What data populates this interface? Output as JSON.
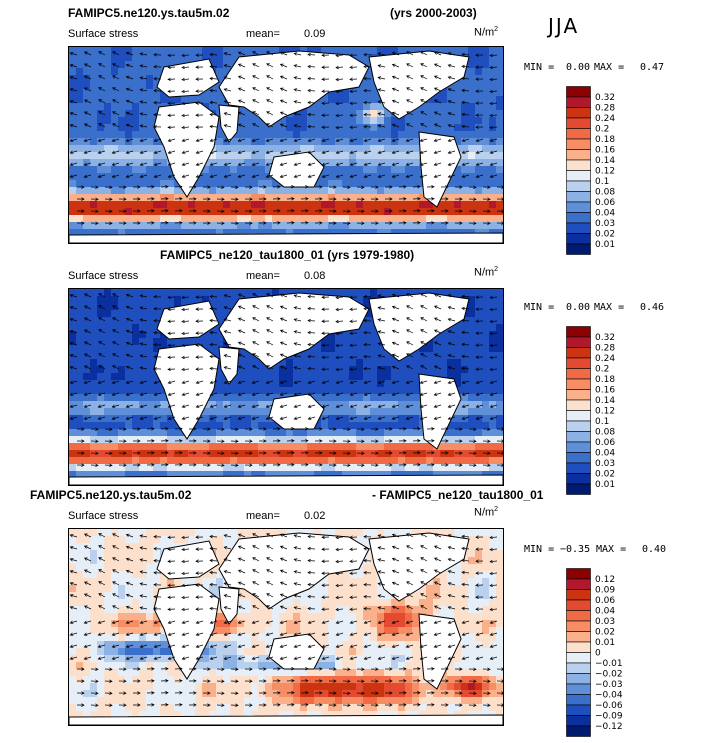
{
  "season": "JJA",
  "units_text": "N/m",
  "units_sup": "2",
  "panels": [
    {
      "title_left": "FAMIPC5.ne120.ys.tau5m.02",
      "title_right": "(yrs 2000-2003)",
      "variable": "Surface stress",
      "mean_label": "mean=",
      "mean_value": "0.09",
      "min_label": "MIN =",
      "min_value": "0.00",
      "max_label": "MAX =",
      "max_value": "0.47",
      "colorbar": [
        "0.32",
        "0.28",
        "0.24",
        "0.2",
        "0.18",
        "0.16",
        "0.14",
        "0.12",
        "0.1",
        "0.08",
        "0.06",
        "0.04",
        "0.03",
        "0.02",
        "0.01"
      ]
    },
    {
      "title_center": "FAMIPC5_ne120_tau1800_01 (yrs 1979-1980)",
      "variable": "Surface stress",
      "mean_label": "mean=",
      "mean_value": "0.08",
      "min_label": "MIN =",
      "min_value": "0.00",
      "max_label": "MAX =",
      "max_value": "0.46",
      "colorbar": [
        "0.32",
        "0.28",
        "0.24",
        "0.2",
        "0.18",
        "0.16",
        "0.14",
        "0.12",
        "0.1",
        "0.08",
        "0.06",
        "0.04",
        "0.03",
        "0.02",
        "0.01"
      ]
    },
    {
      "title_left": "FAMIPC5.ne120.ys.tau5m.02",
      "title_right": "- FAMIPC5_ne120_tau1800_01",
      "variable": "Surface stress",
      "mean_label": "mean=",
      "mean_value": "0.02",
      "min_label": "MIN =",
      "min_value": "−0.35",
      "max_label": "MAX =",
      "max_value": "0.40",
      "colorbar": [
        "0.12",
        "0.09",
        "0.06",
        "0.04",
        "0.03",
        "0.02",
        "0.01",
        "0",
        "−0.01",
        "−0.02",
        "−0.03",
        "−0.04",
        "−0.06",
        "−0.09",
        "−0.12"
      ]
    }
  ],
  "colors": {
    "scale": [
      "#8b0000",
      "#b2182b",
      "#cc3311",
      "#e34a2f",
      "#f06b45",
      "#f78d64",
      "#fbb08c",
      "#fde0cc",
      "#e6eef8",
      "#b9d0ee",
      "#8cb1e4",
      "#5e8fd8",
      "#3a6fcc",
      "#1f4fbf",
      "#0a2f9f",
      "#001a70"
    ],
    "land": "#ffffff",
    "coast": "#000000"
  },
  "chart_data": [
    {
      "type": "heatmap",
      "title": "FAMIPC5.ne120.ys.tau5m.02 (yrs 2000-2003)",
      "variable": "Surface stress",
      "units": "N/m2",
      "mean": 0.09,
      "min": 0.0,
      "max": 0.47,
      "colorbar_levels": [
        0.01,
        0.02,
        0.03,
        0.04,
        0.06,
        0.08,
        0.1,
        0.12,
        0.14,
        0.16,
        0.18,
        0.2,
        0.24,
        0.28,
        0.32
      ]
    },
    {
      "type": "heatmap",
      "title": "FAMIPC5_ne120_tau1800_01 (yrs 1979-1980)",
      "variable": "Surface stress",
      "units": "N/m2",
      "mean": 0.08,
      "min": 0.0,
      "max": 0.46,
      "colorbar_levels": [
        0.01,
        0.02,
        0.03,
        0.04,
        0.06,
        0.08,
        0.1,
        0.12,
        0.14,
        0.16,
        0.18,
        0.2,
        0.24,
        0.28,
        0.32
      ]
    },
    {
      "type": "heatmap",
      "title": "FAMIPC5.ne120.ys.tau5m.02 - FAMIPC5_ne120_tau1800_01",
      "variable": "Surface stress",
      "units": "N/m2",
      "mean": 0.02,
      "min": -0.35,
      "max": 0.4,
      "colorbar_levels": [
        -0.12,
        -0.09,
        -0.06,
        -0.04,
        -0.03,
        -0.02,
        -0.01,
        0,
        0.01,
        0.02,
        0.03,
        0.04,
        0.06,
        0.09,
        0.12
      ]
    }
  ]
}
